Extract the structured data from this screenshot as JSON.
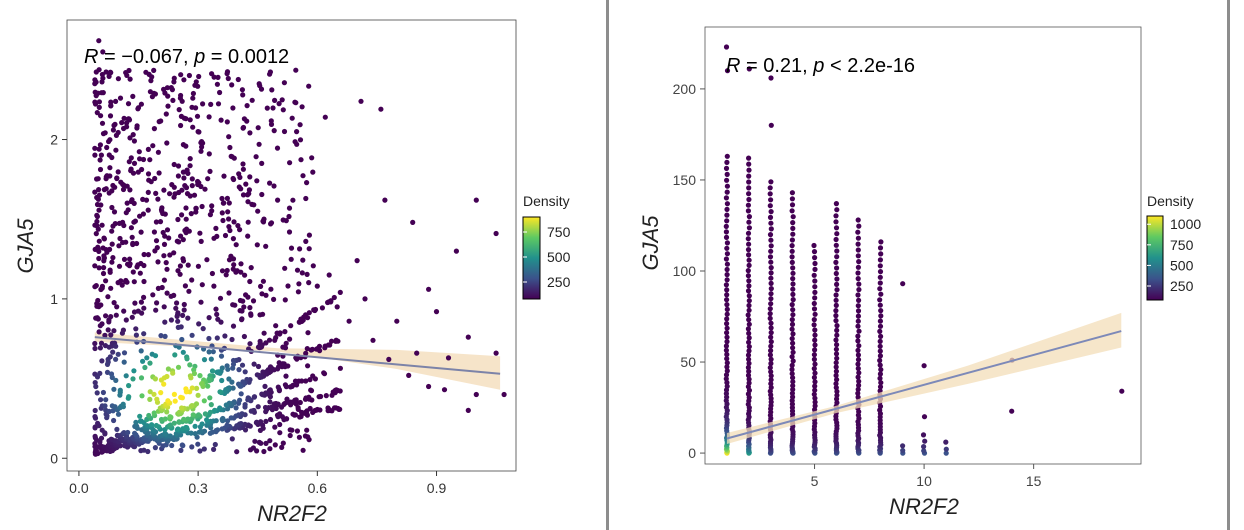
{
  "chart_data": [
    {
      "type": "scatter",
      "title": "",
      "annotation": {
        "r_label": "R",
        "r_text": " = −0.067, ",
        "p_label": "p",
        "p_text": " = 0.0012"
      },
      "xlabel": "NR2F2",
      "ylabel": "GJA5",
      "xlim": [
        -0.03,
        1.1
      ],
      "ylim": [
        -0.08,
        2.75
      ],
      "xticks": [
        0.0,
        0.3,
        0.6,
        0.9
      ],
      "xtick_labels": [
        "0.0",
        "0.3",
        "0.6",
        "0.9"
      ],
      "yticks": [
        0,
        1,
        2
      ],
      "ytick_labels": [
        "0",
        "1",
        "2"
      ],
      "colorbar": {
        "title": "Density",
        "min": 80,
        "max": 900,
        "ticks": [
          250,
          500,
          750
        ],
        "tick_labels": [
          "250",
          "500",
          "750"
        ],
        "placement": "right"
      },
      "regression": {
        "x": [
          0.04,
          1.06
        ],
        "y": [
          0.76,
          0.53
        ],
        "ci_x": [
          0.04,
          0.5,
          0.8,
          1.06
        ],
        "ci_lo": [
          0.73,
          0.67,
          0.56,
          0.43
        ],
        "ci_hi": [
          0.79,
          0.69,
          0.68,
          0.64
        ]
      },
      "points": [
        [
          0.05,
          2.62
        ],
        [
          0.06,
          2.55
        ],
        [
          0.04,
          2.35
        ],
        [
          0.08,
          2.42
        ],
        [
          0.35,
          2.39
        ],
        [
          0.48,
          2.41
        ],
        [
          0.71,
          2.24
        ],
        [
          0.76,
          2.19
        ],
        [
          0.62,
          2.14
        ],
        [
          0.77,
          1.62
        ],
        [
          1.0,
          1.62
        ],
        [
          1.05,
          1.41
        ],
        [
          0.84,
          1.48
        ],
        [
          0.95,
          1.3
        ],
        [
          0.58,
          1.4
        ],
        [
          0.63,
          1.15
        ],
        [
          0.9,
          0.92
        ],
        [
          0.98,
          0.76
        ],
        [
          0.88,
          1.06
        ],
        [
          0.92,
          0.43
        ],
        [
          1.0,
          0.4
        ],
        [
          1.05,
          0.66
        ],
        [
          1.07,
          0.4
        ],
        [
          0.7,
          1.24
        ],
        [
          0.72,
          1.0
        ],
        [
          0.8,
          0.86
        ],
        [
          0.85,
          0.66
        ],
        [
          0.93,
          0.63
        ],
        [
          0.98,
          0.3
        ],
        [
          0.07,
          1.95
        ],
        [
          0.12,
          2.08
        ],
        [
          0.15,
          2.2
        ],
        [
          0.18,
          2.3
        ],
        [
          0.22,
          2.16
        ],
        [
          0.26,
          2.24
        ],
        [
          0.3,
          2.05
        ],
        [
          0.14,
          1.85
        ],
        [
          0.2,
          1.92
        ],
        [
          0.28,
          1.88
        ],
        [
          0.33,
          1.8
        ],
        [
          0.38,
          1.95
        ],
        [
          0.42,
          1.72
        ],
        [
          0.46,
          1.85
        ],
        [
          0.09,
          1.7
        ],
        [
          0.17,
          1.62
        ],
        [
          0.24,
          1.7
        ],
        [
          0.31,
          1.58
        ],
        [
          0.36,
          1.63
        ],
        [
          0.45,
          1.55
        ],
        [
          0.5,
          1.62
        ],
        [
          0.11,
          1.48
        ],
        [
          0.19,
          1.42
        ],
        [
          0.27,
          1.5
        ],
        [
          0.34,
          1.38
        ],
        [
          0.4,
          1.46
        ],
        [
          0.47,
          1.33
        ],
        [
          0.53,
          1.42
        ],
        [
          0.55,
          1.18
        ],
        [
          0.6,
          1.08
        ],
        [
          0.65,
          0.95
        ],
        [
          0.68,
          0.86
        ],
        [
          0.74,
          0.74
        ],
        [
          0.78,
          0.62
        ],
        [
          0.83,
          0.52
        ],
        [
          0.88,
          0.45
        ]
      ]
    },
    {
      "type": "scatter",
      "title": "",
      "annotation": {
        "r_label": "R",
        "r_text": " = 0.21, ",
        "p_label": "p",
        "p_text": " < 2.2e-16"
      },
      "xlabel": "NR2F2",
      "ylabel": "GJA5",
      "xlim": [
        0.0,
        19.9
      ],
      "ylim": [
        -6,
        234
      ],
      "xticks": [
        5,
        10,
        15
      ],
      "xtick_labels": [
        "5",
        "10",
        "15"
      ],
      "yticks": [
        0,
        50,
        100,
        150,
        200
      ],
      "ytick_labels": [
        "0",
        "50",
        "100",
        "150",
        "200"
      ],
      "colorbar": {
        "title": "Density",
        "min": 80,
        "max": 1100,
        "ticks": [
          250,
          500,
          750,
          1000
        ],
        "tick_labels": [
          "250",
          "500",
          "750",
          "1000"
        ],
        "placement": "right"
      },
      "regression": {
        "x": [
          1,
          19
        ],
        "y": [
          8,
          67
        ],
        "ci_x": [
          1,
          6,
          12,
          19
        ],
        "ci_lo": [
          5,
          22,
          38,
          58
        ],
        "ci_hi": [
          11,
          26,
          48,
          77
        ]
      },
      "columns": [
        {
          "x": 1,
          "max": 163,
          "extra": [
            223,
            210
          ]
        },
        {
          "x": 2,
          "max": 162,
          "extra": [
            211
          ]
        },
        {
          "x": 3,
          "max": 149,
          "extra": [
            206,
            180
          ]
        },
        {
          "x": 4,
          "max": 143,
          "extra": []
        },
        {
          "x": 5,
          "max": 114,
          "extra": []
        },
        {
          "x": 6,
          "max": 137,
          "extra": []
        },
        {
          "x": 7,
          "max": 128,
          "extra": []
        },
        {
          "x": 8,
          "max": 116,
          "extra": []
        },
        {
          "x": 9,
          "max": 4,
          "extra": [
            93
          ]
        },
        {
          "x": 10,
          "max": 10,
          "extra": [
            48,
            20
          ]
        },
        {
          "x": 11,
          "max": 6,
          "extra": []
        },
        {
          "x": 14,
          "max": 0,
          "extra": [
            51,
            23
          ]
        },
        {
          "x": 19,
          "max": 0,
          "extra": [
            34
          ]
        }
      ]
    }
  ]
}
